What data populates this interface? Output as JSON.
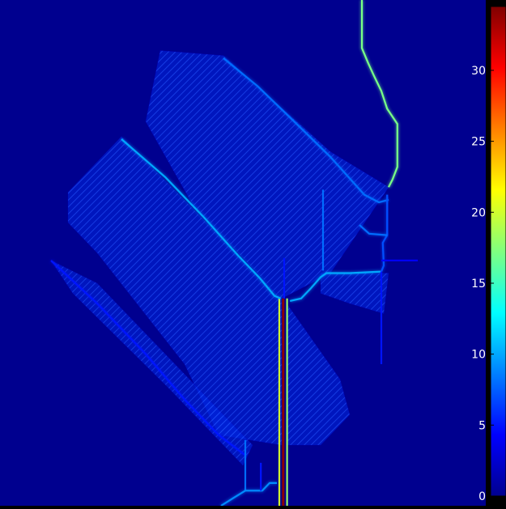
{
  "chart_data": {
    "type": "heatmap",
    "title": "",
    "xlabel": "",
    "ylabel": "",
    "colormap": "jet",
    "colorbar": {
      "range": [
        0,
        34.5
      ],
      "ticks": [
        0,
        5,
        10,
        15,
        20,
        25,
        30
      ],
      "tick_labels": [
        "0",
        "5",
        "10",
        "15",
        "20",
        "25",
        "30"
      ],
      "placement": "right"
    },
    "colors": {
      "background": "#000000",
      "frame": "#000000",
      "tick_text": "#ffffff",
      "field_background": "#00008f"
    },
    "features": [
      {
        "name": "main-stem",
        "kind": "line",
        "value": 34,
        "points": [
          [
            0.583,
            0.59
          ],
          [
            0.583,
            1.0
          ]
        ]
      },
      {
        "name": "main-stem-halo",
        "kind": "line",
        "value": 20,
        "points": [
          [
            0.575,
            0.59
          ],
          [
            0.575,
            1.0
          ]
        ]
      },
      {
        "name": "main-stem-halo-right",
        "kind": "line",
        "value": 18,
        "points": [
          [
            0.591,
            0.59
          ],
          [
            0.591,
            1.0
          ]
        ]
      },
      {
        "name": "upper-branch",
        "kind": "line",
        "value": 17,
        "points": [
          [
            0.745,
            0.0
          ],
          [
            0.745,
            0.095
          ],
          [
            0.758,
            0.125
          ],
          [
            0.77,
            0.15
          ],
          [
            0.785,
            0.18
          ],
          [
            0.797,
            0.215
          ],
          [
            0.818,
            0.245
          ],
          [
            0.818,
            0.33
          ],
          [
            0.808,
            0.355
          ],
          [
            0.8,
            0.37
          ]
        ]
      },
      {
        "name": "left-diagonal-ridge",
        "kind": "line",
        "value": 10,
        "points": [
          [
            0.25,
            0.275
          ],
          [
            0.34,
            0.35
          ],
          [
            0.42,
            0.43
          ],
          [
            0.49,
            0.505
          ],
          [
            0.535,
            0.55
          ],
          [
            0.565,
            0.585
          ],
          [
            0.578,
            0.59
          ]
        ]
      },
      {
        "name": "right-connector",
        "kind": "line",
        "value": 10,
        "points": [
          [
            0.597,
            0.595
          ],
          [
            0.62,
            0.59
          ],
          [
            0.64,
            0.57
          ],
          [
            0.66,
            0.548
          ],
          [
            0.672,
            0.54
          ],
          [
            0.72,
            0.54
          ],
          [
            0.785,
            0.537
          ]
        ]
      },
      {
        "name": "upper-right-diagonal",
        "kind": "line",
        "value": 8,
        "points": [
          [
            0.46,
            0.115
          ],
          [
            0.53,
            0.17
          ],
          [
            0.6,
            0.235
          ],
          [
            0.68,
            0.31
          ],
          [
            0.75,
            0.385
          ],
          [
            0.78,
            0.4
          ],
          [
            0.8,
            0.395
          ]
        ]
      },
      {
        "name": "inner-vertical",
        "kind": "line",
        "value": 8,
        "points": [
          [
            0.665,
            0.375
          ],
          [
            0.665,
            0.535
          ]
        ]
      },
      {
        "name": "right-vertical",
        "kind": "line",
        "value": 7,
        "points": [
          [
            0.797,
            0.385
          ],
          [
            0.797,
            0.465
          ],
          [
            0.788,
            0.48
          ],
          [
            0.79,
            0.525
          ],
          [
            0.785,
            0.537
          ]
        ]
      },
      {
        "name": "mid-connector",
        "kind": "line",
        "value": 8,
        "points": [
          [
            0.74,
            0.445
          ],
          [
            0.76,
            0.462
          ],
          [
            0.797,
            0.465
          ]
        ]
      },
      {
        "name": "lower-left-diagonal",
        "kind": "line",
        "value": 5,
        "points": [
          [
            0.105,
            0.515
          ],
          [
            0.2,
            0.6
          ],
          [
            0.3,
            0.7
          ],
          [
            0.38,
            0.79
          ],
          [
            0.45,
            0.86
          ],
          [
            0.505,
            0.9
          ]
        ]
      },
      {
        "name": "lower-vertical",
        "kind": "line",
        "value": 8,
        "points": [
          [
            0.505,
            0.87
          ],
          [
            0.505,
            0.97
          ]
        ]
      },
      {
        "name": "bottom-connector",
        "kind": "line",
        "value": 9,
        "points": [
          [
            0.455,
            1.0
          ],
          [
            0.48,
            0.985
          ],
          [
            0.505,
            0.97
          ],
          [
            0.54,
            0.97
          ],
          [
            0.555,
            0.955
          ],
          [
            0.57,
            0.955
          ]
        ]
      },
      {
        "name": "small-vertical",
        "kind": "line",
        "value": 5,
        "points": [
          [
            0.537,
            0.915
          ],
          [
            0.537,
            0.97
          ]
        ]
      },
      {
        "name": "far-right-spike",
        "kind": "line",
        "value": 5,
        "points": [
          [
            0.785,
            0.537
          ],
          [
            0.785,
            0.72
          ]
        ]
      },
      {
        "name": "right-horizontal-spike",
        "kind": "line",
        "value": 4,
        "points": [
          [
            0.785,
            0.515
          ],
          [
            0.86,
            0.515
          ]
        ]
      },
      {
        "name": "center-spike",
        "kind": "line",
        "value": 5,
        "points": [
          [
            0.585,
            0.51
          ],
          [
            0.585,
            0.59
          ]
        ]
      },
      {
        "name": "upper-hatch-region",
        "kind": "region",
        "value": 3,
        "points": [
          [
            0.33,
            0.1
          ],
          [
            0.46,
            0.11
          ],
          [
            0.68,
            0.3
          ],
          [
            0.8,
            0.37
          ],
          [
            0.68,
            0.54
          ],
          [
            0.58,
            0.59
          ],
          [
            0.4,
            0.41
          ],
          [
            0.3,
            0.24
          ]
        ]
      },
      {
        "name": "left-hatch-region",
        "kind": "region",
        "value": 2.5,
        "points": [
          [
            0.14,
            0.38
          ],
          [
            0.25,
            0.27
          ],
          [
            0.58,
            0.59
          ],
          [
            0.58,
            0.88
          ],
          [
            0.45,
            0.86
          ],
          [
            0.38,
            0.72
          ],
          [
            0.2,
            0.5
          ],
          [
            0.14,
            0.44
          ]
        ]
      },
      {
        "name": "lower-right-hatch",
        "kind": "region",
        "value": 2.5,
        "points": [
          [
            0.59,
            0.6
          ],
          [
            0.7,
            0.75
          ],
          [
            0.72,
            0.82
          ],
          [
            0.66,
            0.88
          ],
          [
            0.59,
            0.88
          ]
        ]
      },
      {
        "name": "right-hatch-region",
        "kind": "region",
        "value": 2.5,
        "points": [
          [
            0.66,
            0.54
          ],
          [
            0.8,
            0.54
          ],
          [
            0.79,
            0.62
          ],
          [
            0.72,
            0.6
          ],
          [
            0.66,
            0.58
          ]
        ]
      },
      {
        "name": "lower-left-band",
        "kind": "region",
        "value": 2.5,
        "points": [
          [
            0.105,
            0.515
          ],
          [
            0.2,
            0.56
          ],
          [
            0.52,
            0.88
          ],
          [
            0.5,
            0.92
          ],
          [
            0.35,
            0.77
          ],
          [
            0.15,
            0.58
          ]
        ]
      }
    ]
  }
}
